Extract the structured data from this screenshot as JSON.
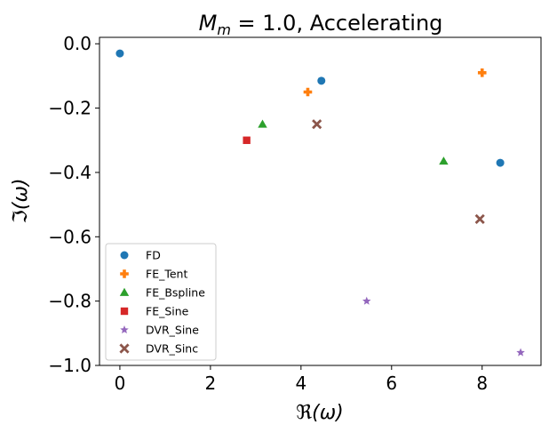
{
  "chart_data": {
    "type": "scatter",
    "title_math": "M",
    "title_sub": "m",
    "title_eq": " = 1.0, ",
    "title_text": "Accelerating",
    "xlabel": "ℜ(ω)",
    "ylabel": "ℑ(ω)",
    "xlim": [
      -0.45,
      9.3
    ],
    "ylim": [
      -1.0,
      0.02
    ],
    "xticks": [
      0,
      2,
      4,
      6,
      8
    ],
    "xtick_labels": [
      "0",
      "2",
      "4",
      "6",
      "8"
    ],
    "yticks": [
      0.0,
      -0.2,
      -0.4,
      -0.6,
      -0.8,
      -1.0
    ],
    "ytick_labels": [
      "0.0",
      "−0.2",
      "−0.4",
      "−0.6",
      "−0.8",
      "−1.0"
    ],
    "legend_position": "lower-left",
    "series": [
      {
        "name": "FD",
        "marker": "circle",
        "color": "#1f77b4",
        "points": [
          [
            0.0,
            -0.03
          ],
          [
            4.45,
            -0.115
          ],
          [
            8.4,
            -0.37
          ]
        ]
      },
      {
        "name": "FE_Tent",
        "marker": "plus",
        "color": "#ff7f0e",
        "points": [
          [
            4.15,
            -0.15
          ],
          [
            8.0,
            -0.09
          ]
        ]
      },
      {
        "name": "FE_Bspline",
        "marker": "triangle",
        "color": "#2ca02c",
        "points": [
          [
            3.15,
            -0.25
          ],
          [
            7.15,
            -0.365
          ]
        ]
      },
      {
        "name": "FE_Sine",
        "marker": "square",
        "color": "#d62728",
        "points": [
          [
            2.8,
            -0.3
          ]
        ]
      },
      {
        "name": "DVR_Sine",
        "marker": "star",
        "color": "#9467bd",
        "points": [
          [
            5.45,
            -0.8
          ],
          [
            8.85,
            -0.96
          ]
        ]
      },
      {
        "name": "DVR_Sinc",
        "marker": "x",
        "color": "#8c564b",
        "points": [
          [
            4.35,
            -0.25
          ],
          [
            7.95,
            -0.545
          ]
        ]
      }
    ]
  }
}
